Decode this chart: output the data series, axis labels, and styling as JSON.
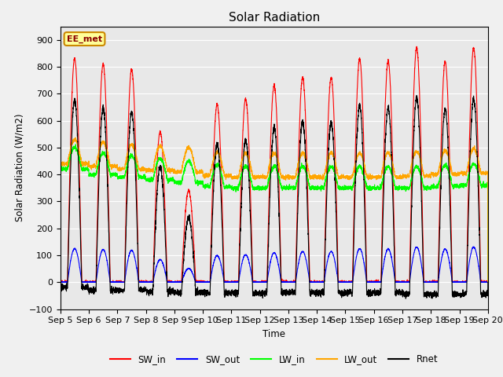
{
  "title": "Solar Radiation",
  "ylabel": "Solar Radiation (W/m2)",
  "xlabel": "Time",
  "ylim": [
    -100,
    950
  ],
  "yticks": [
    -100,
    0,
    100,
    200,
    300,
    400,
    500,
    600,
    700,
    800,
    900
  ],
  "xtick_labels": [
    "Sep 5",
    "Sep 6",
    "Sep 7",
    "Sep 8",
    "Sep 9",
    "Sep 10",
    "Sep 11",
    "Sep 12",
    "Sep 13",
    "Sep 14",
    "Sep 15",
    "Sep 16",
    "Sep 17",
    "Sep 18",
    "Sep 19",
    "Sep 20"
  ],
  "colors": {
    "SW_in": "#ff0000",
    "SW_out": "#0000ff",
    "LW_in": "#00ff00",
    "LW_out": "#ffa500",
    "Rnet": "#000000"
  },
  "watermark_text": "EE_met",
  "watermark_bg": "#ffff99",
  "watermark_border": "#cc8800",
  "plot_bg": "#e8e8e8",
  "fig_bg": "#f0f0f0",
  "n_days": 15,
  "pts_per_day": 288,
  "peak_SW": [
    830,
    810,
    790,
    560,
    340,
    660,
    680,
    730,
    760,
    760,
    830,
    820,
    870,
    820,
    870
  ],
  "LW_in_night": [
    420,
    400,
    390,
    380,
    370,
    355,
    350,
    350,
    350,
    350,
    350,
    350,
    350,
    355,
    360
  ],
  "LW_out_night": [
    440,
    430,
    420,
    415,
    410,
    395,
    390,
    390,
    390,
    390,
    390,
    390,
    395,
    400,
    405
  ]
}
